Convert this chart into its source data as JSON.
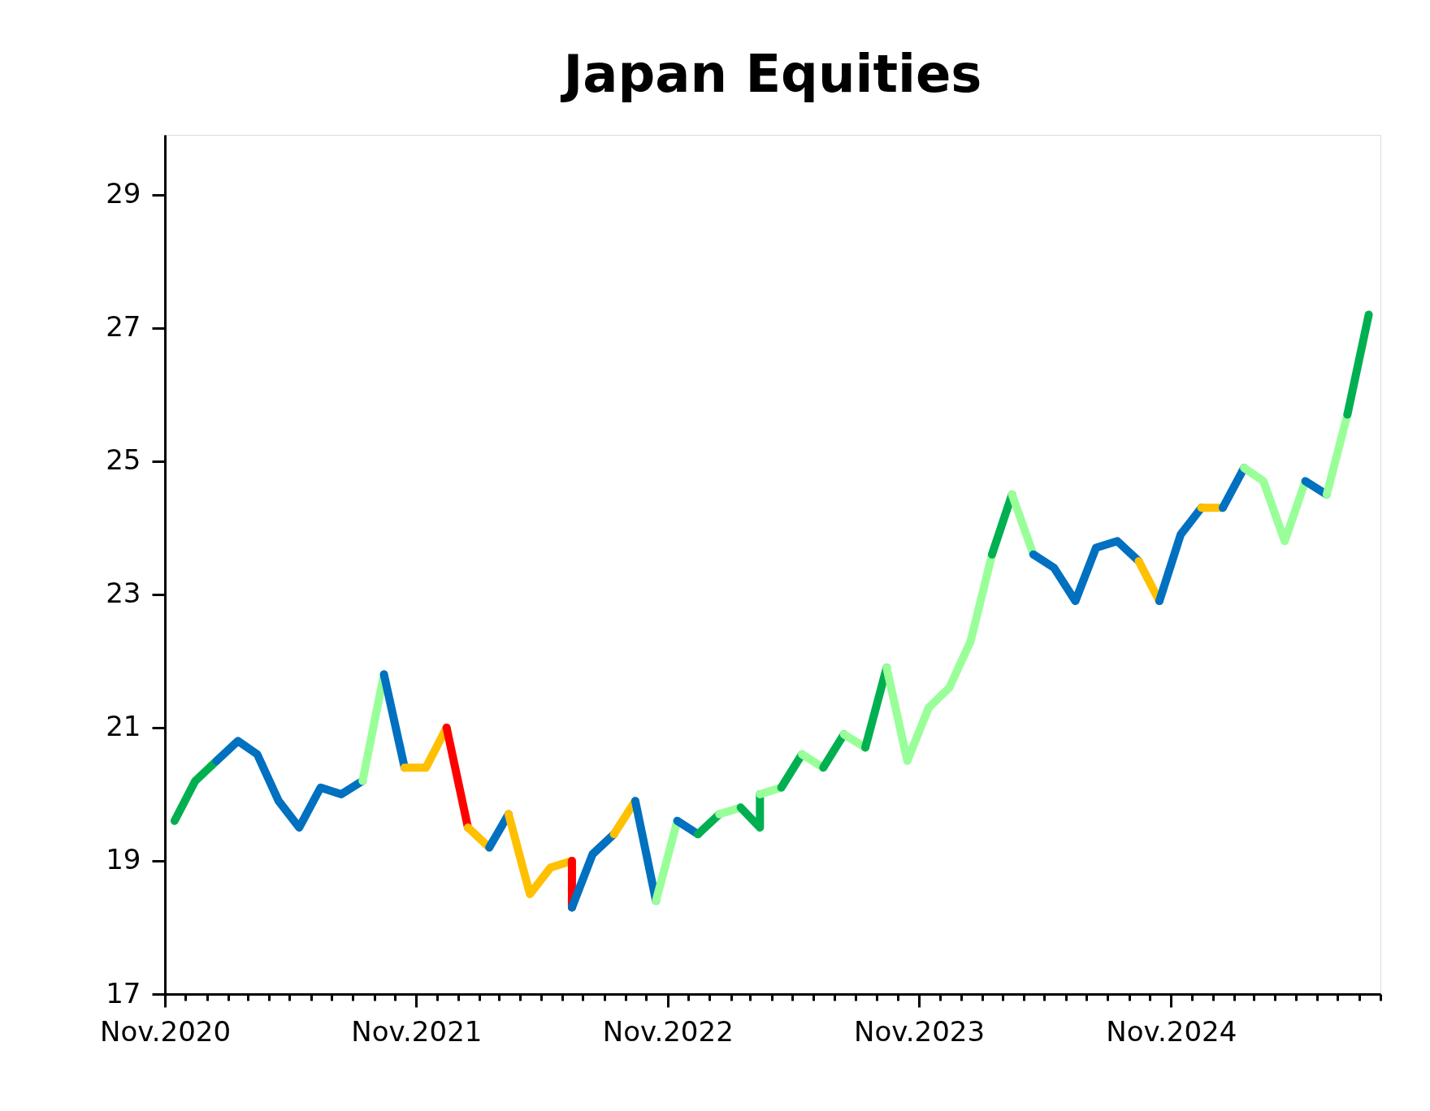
{
  "chart_data": {
    "type": "line",
    "title": "Japan Equities",
    "xlim": [
      "2020-11-01",
      "2025-09-01"
    ],
    "xticks": [
      {
        "value": "2020-11-01",
        "label": "Nov.2020"
      },
      {
        "value": "2020-12-01",
        "label": null
      },
      {
        "value": "2021-01-01",
        "label": null
      },
      {
        "value": "2021-02-01",
        "label": null
      },
      {
        "value": "2021-03-01",
        "label": null
      },
      {
        "value": "2021-04-01",
        "label": null
      },
      {
        "value": "2021-05-01",
        "label": null
      },
      {
        "value": "2021-06-01",
        "label": null
      },
      {
        "value": "2021-07-01",
        "label": null
      },
      {
        "value": "2021-08-01",
        "label": null
      },
      {
        "value": "2021-09-01",
        "label": null
      },
      {
        "value": "2021-10-01",
        "label": null
      },
      {
        "value": "2021-11-01",
        "label": "Nov.2021"
      },
      {
        "value": "2021-12-01",
        "label": null
      },
      {
        "value": "2022-01-01",
        "label": null
      },
      {
        "value": "2022-02-01",
        "label": null
      },
      {
        "value": "2022-03-01",
        "label": null
      },
      {
        "value": "2022-04-01",
        "label": null
      },
      {
        "value": "2022-05-01",
        "label": null
      },
      {
        "value": "2022-06-01",
        "label": null
      },
      {
        "value": "2022-07-01",
        "label": null
      },
      {
        "value": "2022-08-01",
        "label": null
      },
      {
        "value": "2022-09-01",
        "label": null
      },
      {
        "value": "2022-10-01",
        "label": null
      },
      {
        "value": "2022-11-01",
        "label": "Nov.2022"
      },
      {
        "value": "2022-12-01",
        "label": null
      },
      {
        "value": "2023-01-01",
        "label": null
      },
      {
        "value": "2023-02-01",
        "label": null
      },
      {
        "value": "2023-03-01",
        "label": null
      },
      {
        "value": "2023-04-01",
        "label": null
      },
      {
        "value": "2023-05-01",
        "label": null
      },
      {
        "value": "2023-06-01",
        "label": null
      },
      {
        "value": "2023-07-01",
        "label": null
      },
      {
        "value": "2023-08-01",
        "label": null
      },
      {
        "value": "2023-09-01",
        "label": null
      },
      {
        "value": "2023-10-01",
        "label": null
      },
      {
        "value": "2023-11-01",
        "label": "Nov.2023"
      },
      {
        "value": "2023-12-01",
        "label": null
      },
      {
        "value": "2024-01-01",
        "label": null
      },
      {
        "value": "2024-02-01",
        "label": null
      },
      {
        "value": "2024-03-01",
        "label": null
      },
      {
        "value": "2024-04-01",
        "label": null
      },
      {
        "value": "2024-05-01",
        "label": null
      },
      {
        "value": "2024-06-01",
        "label": null
      },
      {
        "value": "2024-07-01",
        "label": null
      },
      {
        "value": "2024-08-01",
        "label": null
      },
      {
        "value": "2024-09-01",
        "label": null
      },
      {
        "value": "2024-10-01",
        "label": null
      },
      {
        "value": "2024-11-01",
        "label": "Nov.2024"
      },
      {
        "value": "2024-12-01",
        "label": null
      },
      {
        "value": "2025-01-01",
        "label": null
      },
      {
        "value": "2025-02-01",
        "label": null
      },
      {
        "value": "2025-03-01",
        "label": null
      },
      {
        "value": "2025-04-01",
        "label": null
      },
      {
        "value": "2025-05-01",
        "label": null
      },
      {
        "value": "2025-06-01",
        "label": null
      },
      {
        "value": "2025-07-01",
        "label": null
      },
      {
        "value": "2025-08-01",
        "label": null
      },
      {
        "value": "2025-09-01",
        "label": null
      }
    ],
    "ylim": [
      17,
      29.9
    ],
    "yticks": [
      17,
      19,
      21,
      23,
      25,
      27,
      29
    ],
    "grid": false,
    "line_style": "solid",
    "series": [
      {
        "color": "#00b050",
        "x": [
          "2020-11-15",
          "2020-12-15",
          "2021-01-15"
        ],
        "values": [
          19.6,
          20.2,
          20.5
        ]
      },
      {
        "color": "#0070c0",
        "x": [
          "2021-01-15",
          "2021-02-15",
          "2021-03-15",
          "2021-04-15",
          "2021-05-15",
          "2021-06-15",
          "2021-07-15",
          "2021-08-15"
        ],
        "values": [
          20.5,
          20.8,
          20.6,
          19.9,
          19.5,
          20.1,
          20.0,
          20.2
        ]
      },
      {
        "color": "#99ff99",
        "x": [
          "2021-08-15",
          "2021-09-15"
        ],
        "values": [
          20.2,
          21.8
        ]
      },
      {
        "color": "#0070c0",
        "x": [
          "2021-09-15",
          "2021-10-15"
        ],
        "values": [
          21.8,
          20.4
        ]
      },
      {
        "color": "#ffc000",
        "x": [
          "2021-10-15",
          "2021-11-15",
          "2021-12-15"
        ],
        "values": [
          20.4,
          20.4,
          21.0
        ]
      },
      {
        "color": "#ff0000",
        "x": [
          "2021-12-15",
          "2022-01-15"
        ],
        "values": [
          21.0,
          19.5
        ]
      },
      {
        "color": "#ffc000",
        "x": [
          "2022-01-15",
          "2022-02-15"
        ],
        "values": [
          19.5,
          19.2
        ]
      },
      {
        "color": "#0070c0",
        "x": [
          "2022-02-15",
          "2022-03-15"
        ],
        "values": [
          19.2,
          19.7
        ]
      },
      {
        "color": "#ffc000",
        "x": [
          "2022-03-15",
          "2022-04-15",
          "2022-05-15",
          "2022-06-15"
        ],
        "values": [
          19.7,
          18.5,
          18.9,
          19.0
        ]
      },
      {
        "color": "#ff0000",
        "x": [
          "2022-06-15",
          "2022-06-15"
        ],
        "values": [
          19.0,
          18.3
        ]
      },
      {
        "color": "#0070c0",
        "x": [
          "2022-06-15",
          "2022-07-15",
          "2022-08-15"
        ],
        "values": [
          18.3,
          19.1,
          19.4
        ]
      },
      {
        "color": "#ffc000",
        "x": [
          "2022-08-15",
          "2022-09-15"
        ],
        "values": [
          19.4,
          19.9
        ]
      },
      {
        "color": "#0070c0",
        "x": [
          "2022-09-15",
          "2022-10-15"
        ],
        "values": [
          19.9,
          18.4
        ]
      },
      {
        "color": "#99ff99",
        "x": [
          "2022-10-15",
          "2022-11-15"
        ],
        "values": [
          18.4,
          19.6
        ]
      },
      {
        "color": "#0070c0",
        "x": [
          "2022-11-15",
          "2022-12-15"
        ],
        "values": [
          19.6,
          19.4
        ]
      },
      {
        "color": "#00b050",
        "x": [
          "2022-12-15",
          "2023-01-15"
        ],
        "values": [
          19.4,
          19.7
        ]
      },
      {
        "color": "#99ff99",
        "x": [
          "2023-01-15",
          "2023-02-15"
        ],
        "values": [
          19.7,
          19.8
        ]
      },
      {
        "color": "#00b050",
        "x": [
          "2023-02-15",
          "2023-03-15",
          "2023-03-15"
        ],
        "values": [
          19.8,
          19.5,
          20.0
        ]
      },
      {
        "color": "#99ff99",
        "x": [
          "2023-03-15",
          "2023-04-15"
        ],
        "values": [
          20.0,
          20.1
        ]
      },
      {
        "color": "#00b050",
        "x": [
          "2023-04-15",
          "2023-05-15"
        ],
        "values": [
          20.1,
          20.6
        ]
      },
      {
        "color": "#99ff99",
        "x": [
          "2023-05-15",
          "2023-06-15"
        ],
        "values": [
          20.6,
          20.4
        ]
      },
      {
        "color": "#00b050",
        "x": [
          "2023-06-15",
          "2023-07-15"
        ],
        "values": [
          20.4,
          20.9
        ]
      },
      {
        "color": "#99ff99",
        "x": [
          "2023-07-15",
          "2023-08-15"
        ],
        "values": [
          20.9,
          20.7
        ]
      },
      {
        "color": "#00b050",
        "x": [
          "2023-08-15",
          "2023-09-15"
        ],
        "values": [
          20.7,
          21.9
        ]
      },
      {
        "color": "#99ff99",
        "x": [
          "2023-09-15",
          "2023-10-15",
          "2023-11-15",
          "2023-12-15",
          "2024-01-15",
          "2024-02-15"
        ],
        "values": [
          21.9,
          20.5,
          21.3,
          21.6,
          22.3,
          23.6
        ]
      },
      {
        "color": "#00b050",
        "x": [
          "2024-02-15",
          "2024-03-15"
        ],
        "values": [
          23.6,
          24.5
        ]
      },
      {
        "color": "#99ff99",
        "x": [
          "2024-03-15",
          "2024-04-15"
        ],
        "values": [
          24.5,
          23.6
        ]
      },
      {
        "color": "#0070c0",
        "x": [
          "2024-04-15",
          "2024-05-15",
          "2024-06-15",
          "2024-07-15",
          "2024-08-15",
          "2024-09-15"
        ],
        "values": [
          23.6,
          23.4,
          22.9,
          23.7,
          23.8,
          23.5
        ]
      },
      {
        "color": "#ffc000",
        "x": [
          "2024-09-15",
          "2024-10-15"
        ],
        "values": [
          23.5,
          22.9
        ]
      },
      {
        "color": "#0070c0",
        "x": [
          "2024-10-15",
          "2024-11-15",
          "2024-12-15"
        ],
        "values": [
          22.9,
          23.9,
          24.3
        ]
      },
      {
        "color": "#ffc000",
        "x": [
          "2024-12-15",
          "2025-01-15"
        ],
        "values": [
          24.3,
          24.3
        ]
      },
      {
        "color": "#0070c0",
        "x": [
          "2025-01-15",
          "2025-02-15"
        ],
        "values": [
          24.3,
          24.9
        ]
      },
      {
        "color": "#99ff99",
        "x": [
          "2025-02-15",
          "2025-03-15",
          "2025-04-15",
          "2025-05-15"
        ],
        "values": [
          24.9,
          24.7,
          23.8,
          24.7
        ]
      },
      {
        "color": "#0070c0",
        "x": [
          "2025-05-15",
          "2025-06-15"
        ],
        "values": [
          24.7,
          24.5
        ]
      },
      {
        "color": "#99ff99",
        "x": [
          "2025-06-15",
          "2025-07-15"
        ],
        "values": [
          24.5,
          25.7
        ]
      },
      {
        "color": "#00b050",
        "x": [
          "2025-07-15",
          "2025-08-15"
        ],
        "values": [
          25.7,
          27.2
        ]
      }
    ]
  }
}
